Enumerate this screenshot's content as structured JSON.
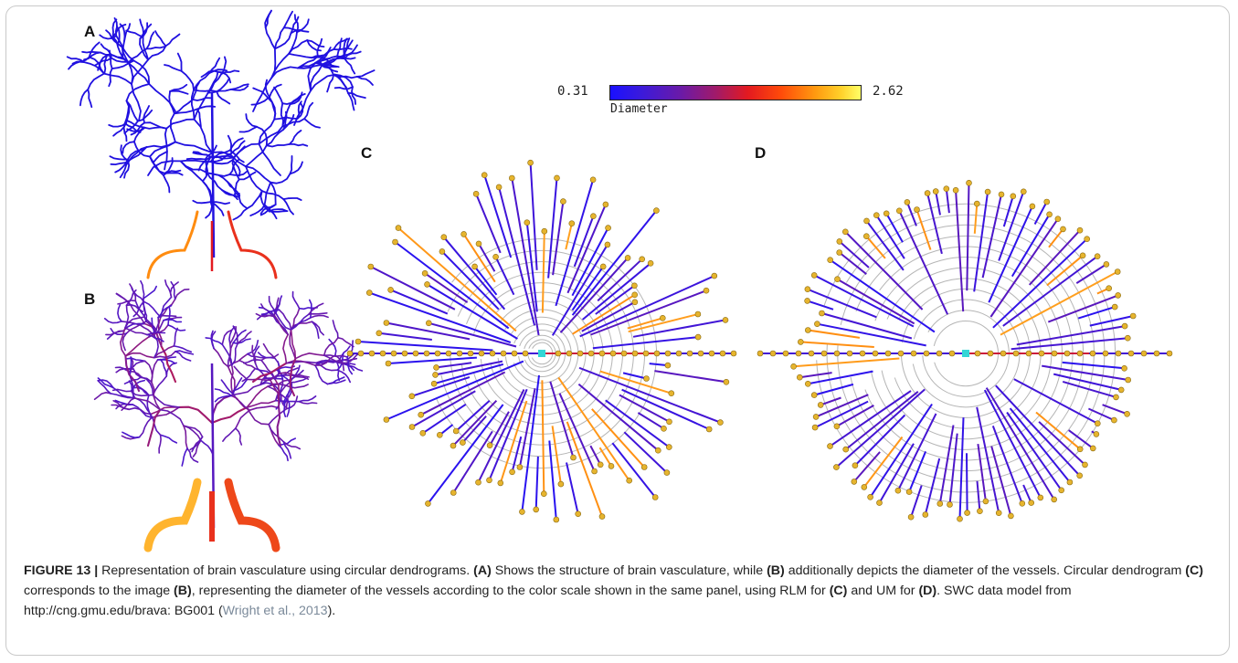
{
  "panels": {
    "a": "A",
    "b": "B",
    "c": "C",
    "d": "D"
  },
  "colorbar": {
    "min_label": "0.31",
    "max_label": "2.62",
    "title": "Diameter",
    "colors": [
      "#1a10ff",
      "#6a1aa8",
      "#e31a20",
      "#ff9a10",
      "#ffff66"
    ]
  },
  "node_color": "#e6b42e",
  "root_color": "#33d6d6",
  "caption": {
    "figure_number": "FIGURE 13 |",
    "s1": " Representation of brain vasculature using circular dendrograms. ",
    "a": "(A)",
    "s2": " Shows the structure of brain vasculature, while ",
    "b": "(B)",
    "s3": " additionally depicts the diameter of the vessels. Circular dendrogram ",
    "c": "(C)",
    "s4": " corresponds to the image ",
    "b2": "(B)",
    "s5": ", representing the diameter of the vessels according to the color scale shown in the same panel, using RLM for ",
    "c2": "(C)",
    "s6": " and UM for ",
    "d": "(D)",
    "s7": ". SWC data model from http://cng.gmu.edu/brava: BG001 (",
    "citation": "Wright et al., 2013",
    "s8": ")."
  }
}
